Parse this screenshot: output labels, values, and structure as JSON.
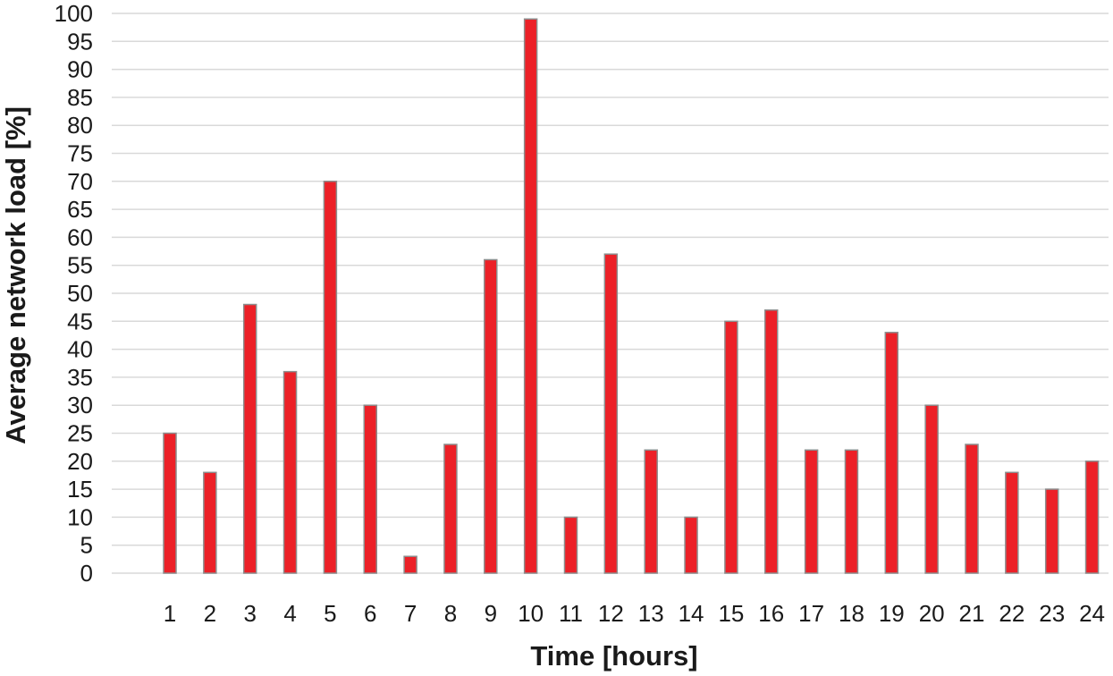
{
  "chart_data": {
    "type": "bar",
    "title": "",
    "xlabel": "Time [hours]",
    "ylabel": "Average network load [%]",
    "categories": [
      "1",
      "2",
      "3",
      "4",
      "5",
      "6",
      "7",
      "8",
      "9",
      "10",
      "11",
      "12",
      "13",
      "14",
      "15",
      "16",
      "17",
      "18",
      "19",
      "20",
      "21",
      "22",
      "23",
      "24"
    ],
    "values": [
      25,
      18,
      48,
      36,
      70,
      30,
      3,
      23,
      56,
      99,
      10,
      57,
      22,
      10,
      45,
      47,
      22,
      22,
      43,
      30,
      23,
      18,
      15,
      20
    ],
    "ylim": [
      0,
      100
    ],
    "yticks": [
      0,
      5,
      10,
      15,
      20,
      25,
      30,
      35,
      40,
      45,
      50,
      55,
      60,
      65,
      70,
      75,
      80,
      85,
      90,
      95,
      100
    ],
    "grid": true,
    "bar_color": "#ec2027",
    "bar_edge_color": "#8c8c8c"
  }
}
